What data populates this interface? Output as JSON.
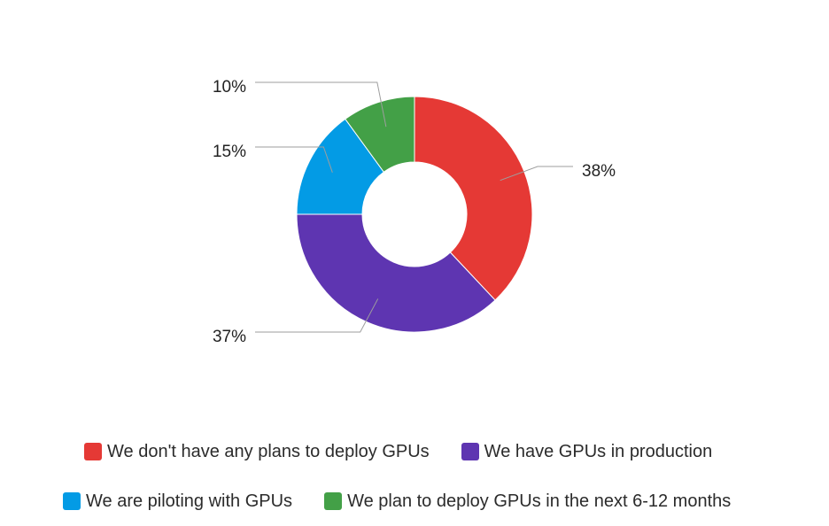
{
  "chart_data": {
    "type": "pie",
    "donut": true,
    "categories": [
      "We don't have any plans to deploy GPUs",
      "We have GPUs in production",
      "We are piloting with GPUs",
      "We plan to deploy GPUs in the next 6-12 months"
    ],
    "values": [
      38,
      37,
      15,
      10
    ],
    "data_labels": [
      "38%",
      "37%",
      "15%",
      "10%"
    ],
    "colors": [
      "#e53935",
      "#5e35b1",
      "#039be5",
      "#43a047"
    ],
    "legend_position": "bottom",
    "title": "",
    "xlabel": "",
    "ylabel": ""
  }
}
